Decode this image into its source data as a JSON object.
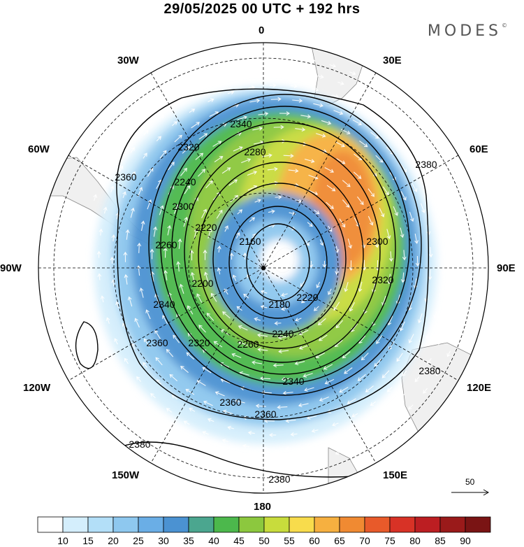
{
  "header": {
    "title": "29/05/2025  00 UTC  + 192 hrs",
    "brand": "MODES"
  },
  "map": {
    "projection": "polar-stereographic-south",
    "longitude_labels": {
      "top": "0",
      "top_right": "30E",
      "right_upper": "60E",
      "right": "90E",
      "right_lower": "120E",
      "bottom_right": "150E",
      "bottom": "180",
      "bottom_left": "150W",
      "left_lower": "120W",
      "left": "90W",
      "left_upper": "60W",
      "top_left": "30W"
    },
    "contour_labels": [
      "2340",
      "2320",
      "2280",
      "2360",
      "2380",
      "2300",
      "2240",
      "2220",
      "2160",
      "2260",
      "2200",
      "2180",
      "2240",
      "2220",
      "2320",
      "2380",
      "2340",
      "2360",
      "2360",
      "2380",
      "2380",
      "2340",
      "2300",
      "2260",
      "2320",
      "2360"
    ],
    "contour_variable": "geopotential height",
    "vector_reference": {
      "value": "50"
    },
    "colors": {
      "land": "#f0f0f0",
      "coast": "#888888",
      "grid": "#000000"
    }
  },
  "colorbar": {
    "ticks": [
      "10",
      "15",
      "20",
      "25",
      "30",
      "35",
      "40",
      "45",
      "50",
      "55",
      "60",
      "65",
      "70",
      "75",
      "80",
      "85",
      "90"
    ],
    "colors": [
      "#ffffff",
      "#d4eefc",
      "#b3dff8",
      "#8ec8ef",
      "#6aaee6",
      "#4b92d2",
      "#4ba68f",
      "#4cb84c",
      "#8cc83e",
      "#c8dc3c",
      "#f8dc4c",
      "#f6b040",
      "#f08a32",
      "#e85a2a",
      "#d83226",
      "#bc1e22",
      "#9a1a1a",
      "#7a1414"
    ]
  }
}
